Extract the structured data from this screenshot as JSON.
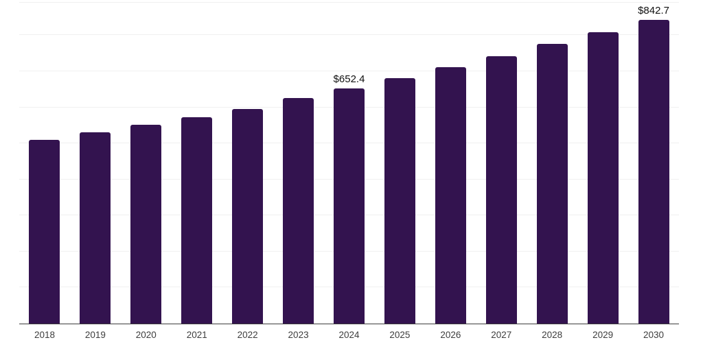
{
  "chart": {
    "colors": {
      "bar": "#33134f",
      "axis_line": "#3c3c3c",
      "gridline": "#f0f0f0",
      "data_label_text": "#111111",
      "tick_label_text": "#3d3d3d",
      "background": "#ffffff"
    }
  },
  "chart_data": {
    "type": "bar",
    "title": "",
    "xlabel": "",
    "ylabel": "",
    "categories": [
      "2018",
      "2019",
      "2020",
      "2021",
      "2022",
      "2023",
      "2024",
      "2025",
      "2026",
      "2027",
      "2028",
      "2029",
      "2030"
    ],
    "values": [
      510,
      531,
      552,
      573,
      596,
      625,
      652.4,
      681,
      711,
      741,
      776,
      809,
      842.7
    ],
    "data_labels": [
      {
        "category": "2024",
        "text": "$652.4"
      },
      {
        "category": "2030",
        "text": "$842.7"
      }
    ],
    "value_prefix": "$",
    "ylim": [
      0,
      890
    ],
    "gridline_step": 100,
    "grid": true,
    "legend": false,
    "x_axis_line": true,
    "y_axis_line": false
  }
}
